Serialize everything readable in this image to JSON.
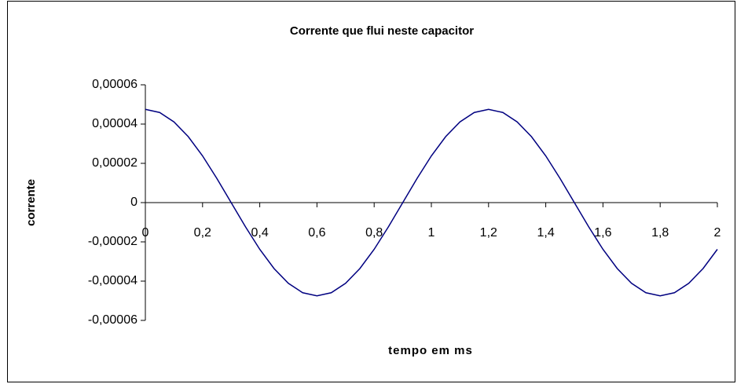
{
  "chart_data": {
    "type": "line",
    "title": "Corrente que flui neste capacitor",
    "xlabel": "tempo em ms",
    "ylabel": "corrente",
    "x": [
      0,
      0.05,
      0.1,
      0.15,
      0.2,
      0.25,
      0.3,
      0.35,
      0.4,
      0.45,
      0.5,
      0.55,
      0.6,
      0.65,
      0.7,
      0.75,
      0.8,
      0.85,
      0.9,
      0.95,
      1,
      1.05,
      1.1,
      1.15,
      1.2,
      1.25,
      1.3,
      1.35,
      1.4,
      1.45,
      1.5,
      1.55,
      1.6,
      1.65,
      1.7,
      1.75,
      1.8,
      1.85,
      1.9,
      1.95,
      2
    ],
    "series": [
      {
        "name": "corrente",
        "color": "#000080",
        "values": [
          4.75e-05,
          4.59e-05,
          4.11e-05,
          3.36e-05,
          2.38e-05,
          1.23e-05,
          0,
          -1.23e-05,
          -2.38e-05,
          -3.36e-05,
          -4.11e-05,
          -4.59e-05,
          -4.75e-05,
          -4.59e-05,
          -4.11e-05,
          -3.36e-05,
          -2.38e-05,
          -1.23e-05,
          0,
          1.23e-05,
          2.38e-05,
          3.36e-05,
          4.11e-05,
          4.59e-05,
          4.75e-05,
          4.59e-05,
          4.11e-05,
          3.36e-05,
          2.38e-05,
          1.23e-05,
          0,
          -1.23e-05,
          -2.38e-05,
          -3.36e-05,
          -4.11e-05,
          -4.59e-05,
          -4.75e-05,
          -4.59e-05,
          -4.11e-05,
          -3.36e-05,
          -2.38e-05
        ]
      }
    ],
    "xlim": [
      0,
      2
    ],
    "xticks": [
      0,
      {
        "value": 0.2,
        "label": "0,2"
      },
      {
        "value": 0.4,
        "label": "0,4"
      },
      {
        "value": 0.6,
        "label": "0,6"
      },
      {
        "value": 0.8,
        "label": "0,8"
      },
      1,
      {
        "value": 1.2,
        "label": "1,2"
      },
      {
        "value": 1.4,
        "label": "1,4"
      },
      {
        "value": 1.6,
        "label": "1,6"
      },
      {
        "value": 1.8,
        "label": "1,8"
      },
      2
    ],
    "ylim": [
      -6e-05,
      6e-05
    ],
    "yticks": [
      {
        "value": -6e-05,
        "label": "-0,00006"
      },
      {
        "value": -4e-05,
        "label": "-0,00004"
      },
      {
        "value": -2e-05,
        "label": "-0,00002"
      },
      0,
      {
        "value": 2e-05,
        "label": "0,00002"
      },
      {
        "value": 4e-05,
        "label": "0,00004"
      },
      {
        "value": 6e-05,
        "label": "0,00006"
      }
    ],
    "grid": false
  }
}
